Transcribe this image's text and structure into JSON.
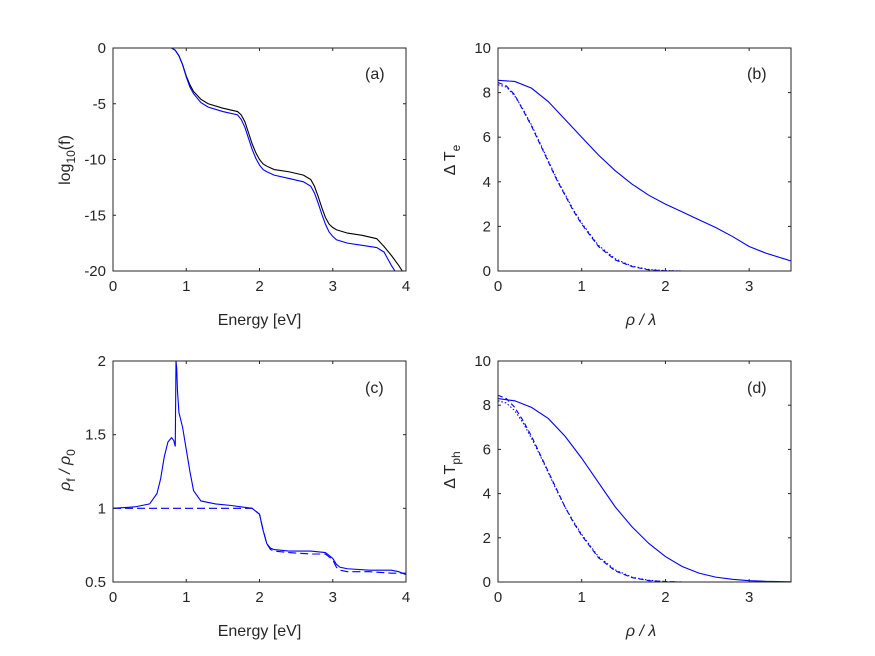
{
  "chart_data": [
    {
      "id": "a",
      "type": "line",
      "panel_label": "(a)",
      "xlabel": "Energy [eV]",
      "ylabel": {
        "base": "log",
        "sub": "10",
        "rest": "(f)"
      },
      "xlim": [
        0,
        4
      ],
      "ylim": [
        -20,
        0
      ],
      "xticks": [
        0,
        1,
        2,
        3,
        4
      ],
      "xtick_labels": [
        "0",
        "1",
        "2",
        "3",
        "4"
      ],
      "yticks": [
        0,
        -5,
        -10,
        -15,
        -20
      ],
      "ytick_labels": [
        "0",
        "-5",
        "-10",
        "-15",
        "-20"
      ],
      "series": [
        {
          "name": "black",
          "color": "#000000",
          "dash": "solid",
          "x": [
            0,
            0.8,
            0.85,
            0.9,
            0.95,
            1.0,
            1.05,
            1.1,
            1.2,
            1.3,
            1.5,
            1.7,
            1.75,
            1.8,
            1.85,
            1.9,
            1.95,
            2.0,
            2.05,
            2.1,
            2.2,
            2.4,
            2.6,
            2.7,
            2.75,
            2.8,
            2.85,
            2.9,
            2.95,
            3.0,
            3.05,
            3.1,
            3.2,
            3.4,
            3.6,
            3.7,
            3.8,
            3.9,
            3.95
          ],
          "y": [
            0,
            0,
            -0.2,
            -0.7,
            -1.5,
            -2.5,
            -3.3,
            -3.9,
            -4.6,
            -5.0,
            -5.4,
            -5.7,
            -6.0,
            -6.6,
            -7.6,
            -8.6,
            -9.4,
            -10.0,
            -10.4,
            -10.6,
            -10.9,
            -11.1,
            -11.4,
            -11.8,
            -12.4,
            -13.3,
            -14.3,
            -15.2,
            -15.8,
            -16.1,
            -16.3,
            -16.4,
            -16.6,
            -16.8,
            -17.1,
            -17.8,
            -18.6,
            -19.5,
            -20
          ]
        },
        {
          "name": "blue",
          "color": "#0000ff",
          "dash": "solid",
          "x": [
            0,
            0.8,
            0.85,
            0.9,
            0.95,
            1.0,
            1.05,
            1.1,
            1.2,
            1.3,
            1.5,
            1.7,
            1.75,
            1.8,
            1.85,
            1.9,
            1.95,
            2.0,
            2.05,
            2.1,
            2.2,
            2.4,
            2.6,
            2.7,
            2.75,
            2.8,
            2.85,
            2.9,
            2.95,
            3.0,
            3.05,
            3.1,
            3.2,
            3.4,
            3.6,
            3.7,
            3.75,
            3.8,
            3.85
          ],
          "y": [
            0,
            0,
            -0.2,
            -0.7,
            -1.5,
            -2.6,
            -3.5,
            -4.1,
            -4.9,
            -5.3,
            -5.7,
            -6.0,
            -6.4,
            -7.1,
            -8.1,
            -9.1,
            -9.9,
            -10.5,
            -10.9,
            -11.1,
            -11.4,
            -11.7,
            -12.0,
            -12.4,
            -13.0,
            -13.9,
            -14.9,
            -15.8,
            -16.5,
            -16.9,
            -17.2,
            -17.3,
            -17.5,
            -17.7,
            -17.9,
            -18.3,
            -18.9,
            -19.5,
            -20
          ]
        }
      ]
    },
    {
      "id": "b",
      "type": "line",
      "panel_label": "(b)",
      "xlabel": "ρ / λ",
      "ylabel": {
        "base": "Δ T",
        "sub": "e",
        "rest": ""
      },
      "xlim": [
        0,
        3.5
      ],
      "ylim": [
        0,
        10
      ],
      "xticks": [
        0,
        1,
        2,
        3
      ],
      "xtick_labels": [
        "0",
        "1",
        "2",
        "3"
      ],
      "yticks": [
        0,
        2,
        4,
        6,
        8,
        10
      ],
      "ytick_labels": [
        "0",
        "2",
        "4",
        "6",
        "8",
        "10"
      ],
      "series": [
        {
          "name": "solid",
          "color": "#0000ff",
          "dash": "solid",
          "x": [
            0,
            0.2,
            0.4,
            0.6,
            0.8,
            1.0,
            1.2,
            1.4,
            1.6,
            1.8,
            2.0,
            2.2,
            2.4,
            2.6,
            2.8,
            3.0,
            3.2,
            3.5
          ],
          "y": [
            8.55,
            8.5,
            8.2,
            7.6,
            6.8,
            6.0,
            5.2,
            4.5,
            3.9,
            3.4,
            3.0,
            2.65,
            2.3,
            1.95,
            1.55,
            1.1,
            0.8,
            0.45
          ]
        },
        {
          "name": "dashed",
          "color": "#0000ff",
          "dash": "5,3",
          "x": [
            0,
            0.1,
            0.2,
            0.3,
            0.4,
            0.5,
            0.6,
            0.7,
            0.8,
            0.9,
            1.0,
            1.2,
            1.4,
            1.6,
            1.8,
            2.0,
            2.2,
            2.5,
            3.0
          ],
          "y": [
            8.45,
            8.3,
            7.9,
            7.2,
            6.5,
            5.7,
            4.9,
            4.1,
            3.4,
            2.7,
            2.1,
            1.1,
            0.5,
            0.2,
            0.05,
            0.01,
            0,
            0,
            0
          ]
        },
        {
          "name": "dotted",
          "color": "#0000ff",
          "dash": "1.5,2",
          "x": [
            0,
            0.1,
            0.2,
            0.3,
            0.4,
            0.5,
            0.6,
            0.7,
            0.8,
            0.9,
            1.0,
            1.2,
            1.4,
            1.6,
            1.8,
            2.0,
            2.2,
            2.5,
            3.0
          ],
          "y": [
            8.35,
            8.25,
            7.85,
            7.25,
            6.55,
            5.75,
            4.95,
            4.15,
            3.45,
            2.75,
            2.15,
            1.15,
            0.55,
            0.22,
            0.07,
            0.02,
            0,
            0,
            0
          ]
        }
      ]
    },
    {
      "id": "c",
      "type": "line",
      "panel_label": "(c)",
      "xlabel": "Energy [eV]",
      "ylabel": {
        "base": "ρ",
        "sub": "f",
        "rest": " / ρ",
        "sub2": "0"
      },
      "xlim": [
        0,
        4
      ],
      "ylim": [
        0.5,
        2
      ],
      "xticks": [
        0,
        1,
        2,
        3,
        4
      ],
      "xtick_labels": [
        "0",
        "1",
        "2",
        "3",
        "4"
      ],
      "yticks": [
        0.5,
        1,
        1.5,
        2
      ],
      "ytick_labels": [
        "0.5",
        "1",
        "1.5",
        "2"
      ],
      "series": [
        {
          "name": "solid",
          "color": "#0000ff",
          "dash": "solid",
          "x": [
            0,
            0.3,
            0.5,
            0.6,
            0.65,
            0.7,
            0.75,
            0.8,
            0.83,
            0.85,
            0.86,
            0.87,
            0.88,
            0.9,
            0.95,
            1.0,
            1.05,
            1.1,
            1.2,
            1.4,
            1.6,
            1.9,
            2.0,
            2.05,
            2.1,
            2.15,
            2.2,
            2.4,
            2.7,
            2.9,
            3.0,
            3.05,
            3.1,
            3.2,
            3.5,
            3.8,
            3.9,
            4.0
          ],
          "y": [
            1.0,
            1.01,
            1.03,
            1.1,
            1.2,
            1.35,
            1.45,
            1.48,
            1.46,
            1.42,
            2.0,
            1.95,
            1.8,
            1.65,
            1.55,
            1.4,
            1.25,
            1.12,
            1.05,
            1.03,
            1.02,
            1.0,
            0.96,
            0.85,
            0.76,
            0.73,
            0.72,
            0.71,
            0.71,
            0.7,
            0.66,
            0.62,
            0.6,
            0.59,
            0.58,
            0.58,
            0.57,
            0.55
          ]
        },
        {
          "name": "dashed",
          "color": "#0000ff",
          "dash": "8,4",
          "x": [
            0,
            0.5,
            1.0,
            1.5,
            1.9,
            2.0,
            2.05,
            2.1,
            2.15,
            2.2,
            2.4,
            2.7,
            2.9,
            3.0,
            3.05,
            3.1,
            3.2,
            3.5,
            3.8,
            4.0
          ],
          "y": [
            1.0,
            1.0,
            1.0,
            1.0,
            1.0,
            0.96,
            0.85,
            0.76,
            0.72,
            0.71,
            0.7,
            0.69,
            0.69,
            0.65,
            0.6,
            0.58,
            0.57,
            0.57,
            0.56,
            0.56
          ]
        }
      ]
    },
    {
      "id": "d",
      "type": "line",
      "panel_label": "(d)",
      "xlabel": "ρ / λ",
      "ylabel": {
        "base": "Δ T",
        "sub": "ph",
        "rest": ""
      },
      "xlim": [
        0,
        3.5
      ],
      "ylim": [
        0,
        10
      ],
      "xticks": [
        0,
        1,
        2,
        3
      ],
      "xtick_labels": [
        "0",
        "1",
        "2",
        "3"
      ],
      "yticks": [
        0,
        2,
        4,
        6,
        8,
        10
      ],
      "ytick_labels": [
        "0",
        "2",
        "4",
        "6",
        "8",
        "10"
      ],
      "series": [
        {
          "name": "solid",
          "color": "#0000ff",
          "dash": "solid",
          "x": [
            0,
            0.2,
            0.4,
            0.6,
            0.8,
            1.0,
            1.2,
            1.4,
            1.6,
            1.8,
            2.0,
            2.2,
            2.4,
            2.6,
            2.8,
            3.0,
            3.2,
            3.5
          ],
          "y": [
            8.3,
            8.2,
            7.9,
            7.4,
            6.6,
            5.6,
            4.5,
            3.4,
            2.5,
            1.75,
            1.15,
            0.7,
            0.4,
            0.22,
            0.12,
            0.06,
            0.03,
            0.01
          ]
        },
        {
          "name": "dashed",
          "color": "#0000ff",
          "dash": "5,3",
          "x": [
            0,
            0.1,
            0.2,
            0.3,
            0.4,
            0.5,
            0.6,
            0.7,
            0.8,
            0.9,
            1.0,
            1.2,
            1.4,
            1.6,
            1.8,
            2.0,
            2.2,
            2.5,
            3.0,
            3.5
          ],
          "y": [
            8.45,
            8.3,
            7.9,
            7.3,
            6.6,
            5.8,
            5.0,
            4.2,
            3.4,
            2.7,
            2.1,
            1.1,
            0.5,
            0.2,
            0.06,
            0.02,
            0,
            0,
            0,
            0
          ]
        },
        {
          "name": "dotted",
          "color": "#0000ff",
          "dash": "1.5,2",
          "x": [
            0,
            0.1,
            0.2,
            0.3,
            0.4,
            0.5,
            0.6,
            0.7,
            0.8,
            0.9,
            1.0,
            1.2,
            1.4,
            1.6,
            1.8,
            2.0,
            2.2,
            2.5,
            3.0,
            3.5
          ],
          "y": [
            8.2,
            8.1,
            7.75,
            7.2,
            6.5,
            5.75,
            4.95,
            4.15,
            3.4,
            2.75,
            2.15,
            1.15,
            0.55,
            0.22,
            0.08,
            0.02,
            0,
            0,
            0,
            0
          ]
        }
      ]
    }
  ]
}
